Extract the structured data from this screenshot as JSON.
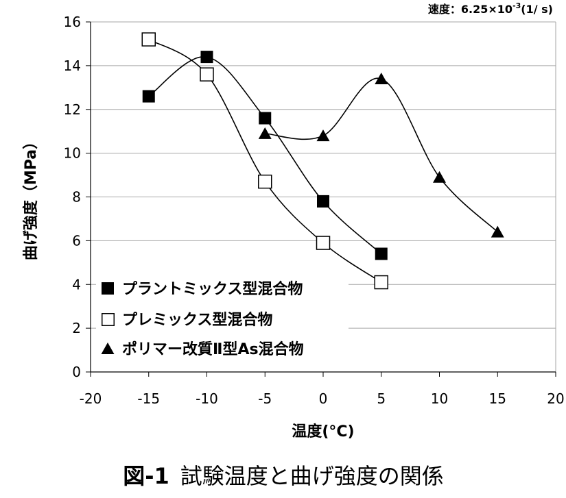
{
  "annotation": {
    "text": "速度：6.25×10",
    "exponent": "-3",
    "unit": "(1/ s)"
  },
  "caption": {
    "number": "図-1",
    "title": "試験温度と曲げ強度の関係"
  },
  "colors": {
    "ink": "#000000",
    "marker_fill_open": "#ffffff",
    "grid": "#a6a6a6",
    "background": "#ffffff"
  },
  "chart_data": {
    "type": "line",
    "smoothed": true,
    "xlabel": "温度(°C)",
    "ylabel": "曲げ強度（MPa）",
    "xlim": [
      -20,
      20
    ],
    "ylim": [
      0,
      16
    ],
    "xticks": [
      -20,
      -15,
      -10,
      -5,
      0,
      5,
      10,
      15,
      20
    ],
    "yticks": [
      0,
      2,
      4,
      6,
      8,
      10,
      12,
      14,
      16
    ],
    "grid": "horizontal",
    "legend_position": "bottom-left",
    "series": [
      {
        "name": "プラントミックス型混合物",
        "marker": "filled-square",
        "x": [
          -15,
          -10,
          -5,
          0,
          5
        ],
        "y": [
          12.6,
          14.4,
          11.6,
          7.8,
          5.4
        ]
      },
      {
        "name": "プレミックス型混合物",
        "marker": "open-square",
        "x": [
          -15,
          -10,
          -5,
          0,
          5
        ],
        "y": [
          15.2,
          13.6,
          8.7,
          5.9,
          4.1
        ]
      },
      {
        "name": "ポリマー改質Ⅱ型As混合物",
        "marker": "filled-triangle",
        "x": [
          -5,
          0,
          5,
          10,
          15
        ],
        "y": [
          10.9,
          10.8,
          13.4,
          8.9,
          6.4
        ]
      }
    ]
  }
}
